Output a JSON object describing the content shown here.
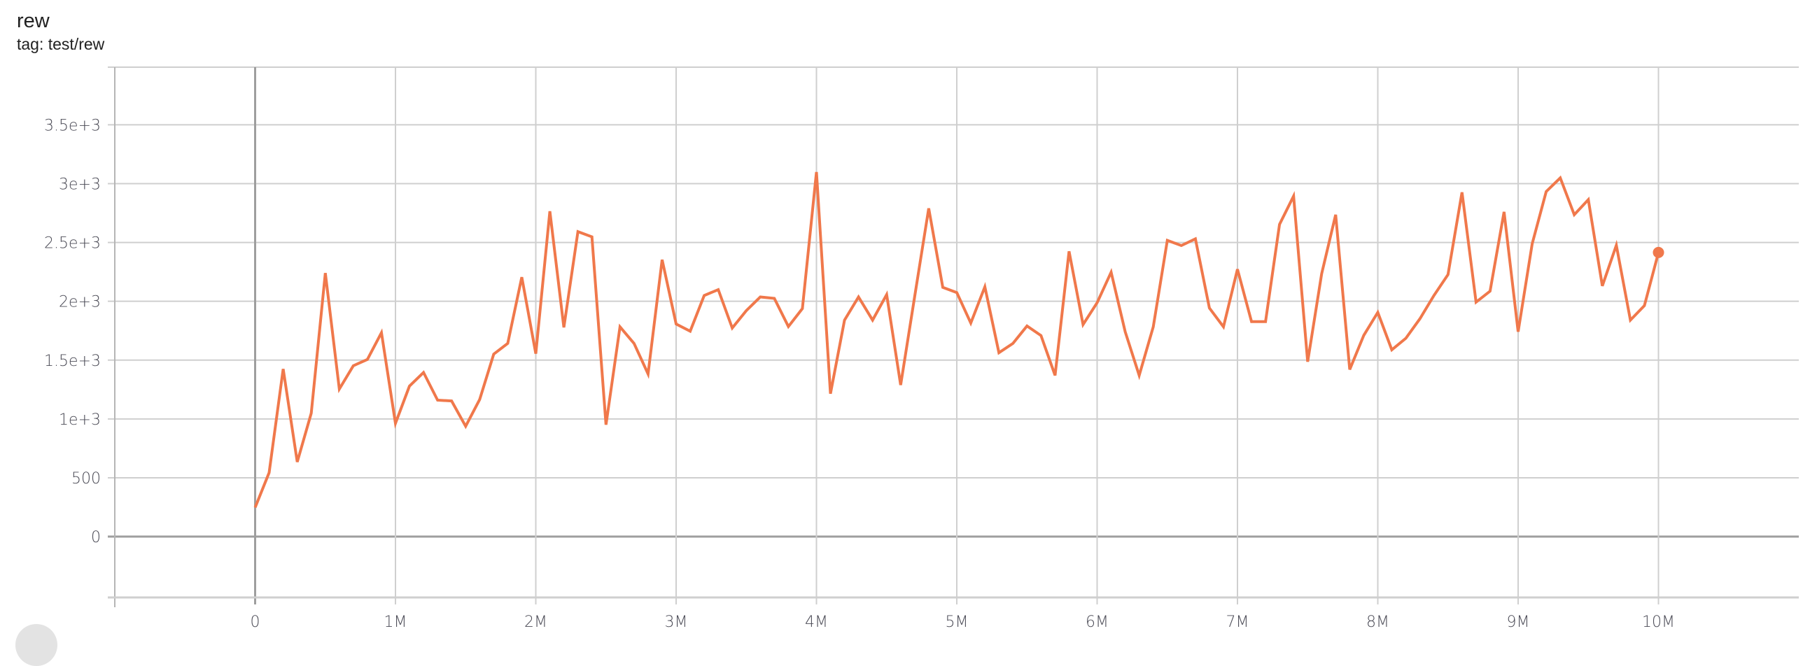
{
  "header": {
    "title": "rew",
    "tag": "tag: test/rew"
  },
  "chart_data": {
    "type": "line",
    "title": "rew",
    "subtitle": "tag: test/rew",
    "xlabel": "",
    "ylabel": "",
    "xlim": [
      -1000000,
      11000000
    ],
    "ylim": [
      -517,
      3990
    ],
    "grid": true,
    "legend": "none",
    "x_ticks": [
      0,
      1000000,
      2000000,
      3000000,
      4000000,
      5000000,
      6000000,
      7000000,
      8000000,
      9000000,
      10000000
    ],
    "x_tick_labels": [
      "0",
      "1M",
      "2M",
      "3M",
      "4M",
      "5M",
      "6M",
      "7M",
      "8M",
      "9M",
      "10M"
    ],
    "y_ticks": [
      0,
      500,
      1000,
      1500,
      2000,
      2500,
      3000,
      3500
    ],
    "y_tick_labels": [
      "0",
      "500",
      "1e+3",
      "1.5e+3",
      "2e+3",
      "2.5e+3",
      "3e+3",
      "3.5e+3"
    ],
    "series": [
      {
        "color": "#f0784b",
        "x": [
          0,
          100000,
          200000,
          300000,
          400000,
          500000,
          600000,
          700000,
          800000,
          900000,
          1000000,
          1100000,
          1200000,
          1300000,
          1400000,
          1500000,
          1600000,
          1700000,
          1800000,
          1900000,
          2000000,
          2100000,
          2200000,
          2300000,
          2400000,
          2500000,
          2600000,
          2700000,
          2800000,
          2900000,
          3000000,
          3100000,
          3200000,
          3300000,
          3400000,
          3500000,
          3600000,
          3700000,
          3800000,
          3900000,
          4000000,
          4100000,
          4200000,
          4300000,
          4400000,
          4500000,
          4600000,
          4700000,
          4800000,
          4900000,
          5000000,
          5100000,
          5200000,
          5300000,
          5400000,
          5500000,
          5600000,
          5700000,
          5800000,
          5900000,
          6000000,
          6100000,
          6200000,
          6300000,
          6400000,
          6500000,
          6600000,
          6700000,
          6800000,
          6900000,
          7000000,
          7100000,
          7200000,
          7300000,
          7400000,
          7500000,
          7600000,
          7700000,
          7800000,
          7900000,
          8000000,
          8100000,
          8200000,
          8300000,
          8400000,
          8500000,
          8600000,
          8700000,
          8800000,
          8900000,
          9000000,
          9100000,
          9200000,
          9300000,
          9400000,
          9500000,
          9600000,
          9700000,
          9800000,
          9900000,
          10000000
        ],
        "y": [
          247,
          543,
          1425,
          635,
          1049,
          2240,
          1254,
          1452,
          1506,
          1733,
          963,
          1279,
          1395,
          1160,
          1153,
          938,
          1165,
          1551,
          1642,
          2205,
          1555,
          2765,
          1778,
          2592,
          2548,
          951,
          1783,
          1642,
          1383,
          2353,
          1807,
          1746,
          2049,
          2099,
          1773,
          1921,
          2037,
          2025,
          1785,
          1938,
          3099,
          1215,
          1840,
          2037,
          1840,
          2057,
          1289,
          2040,
          2790,
          2118,
          2074,
          1815,
          2123,
          1563,
          1642,
          1790,
          1709,
          1370,
          2425,
          1802,
          1988,
          2247,
          1741,
          1370,
          1783,
          2518,
          2474,
          2531,
          1943,
          1783,
          2272,
          1827,
          1827,
          2654,
          2894,
          1486,
          2234,
          2736,
          1420,
          1711,
          1906,
          1588,
          1686,
          1852,
          2049,
          2227,
          2926,
          1993,
          2086,
          2760,
          1741,
          2489,
          2933,
          3049,
          2736,
          2864,
          2131,
          2476,
          1840,
          1963,
          2415
        ]
      }
    ]
  }
}
